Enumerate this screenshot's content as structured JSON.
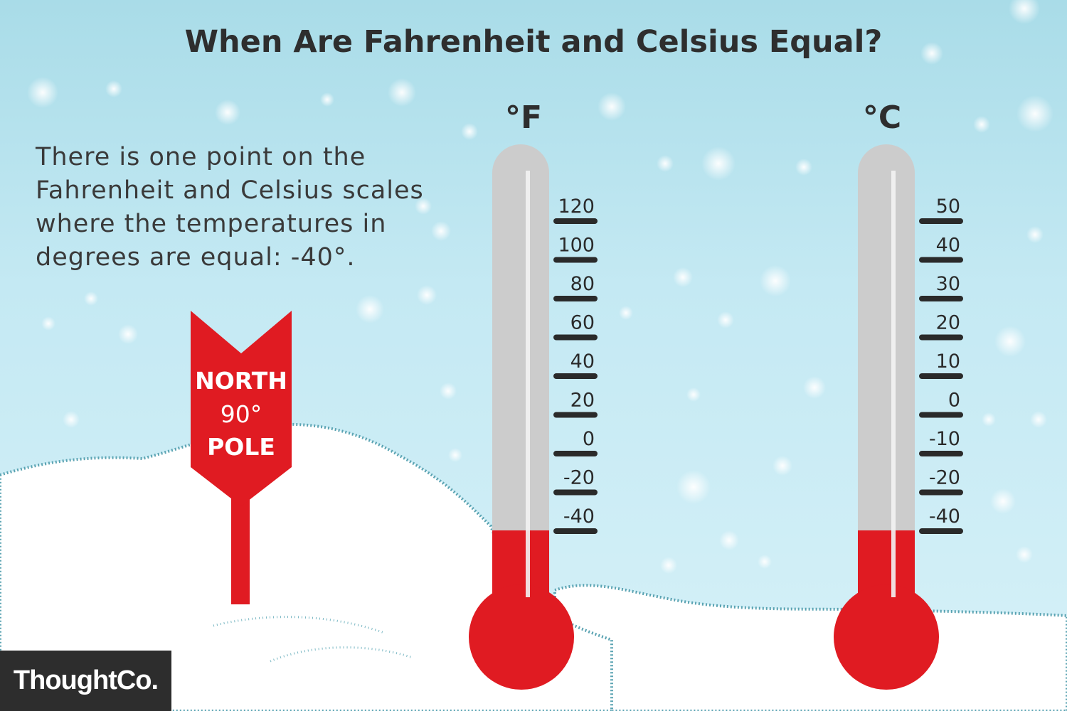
{
  "title": "When Are Fahrenheit and Celsius Equal?",
  "intro_lines": [
    "There is one point on the",
    "Fahrenheit and Celsius scales",
    "where the temperatures in",
    "degrees are equal: -40°."
  ],
  "sign": {
    "line1": "NORTH",
    "line2": "90°",
    "line3": "POLE"
  },
  "thermometers": {
    "fahrenheit": {
      "unit": "°F",
      "ticks": [
        "120",
        "100",
        "80",
        "60",
        "40",
        "20",
        "0",
        "-20",
        "-40"
      ],
      "reading": -40
    },
    "celsius": {
      "unit": "°C",
      "ticks": [
        "50",
        "40",
        "30",
        "20",
        "10",
        "0",
        "-10",
        "-20",
        "-40"
      ],
      "reading": -40
    }
  },
  "brand": "ThoughtCo.",
  "colors": {
    "mercury": "#e01b22",
    "tube": "#cccccc",
    "snow": "#ffffff",
    "snow_edge": "#3c8fa0",
    "sign": "#e01b22",
    "text": "#2e2e2e"
  }
}
